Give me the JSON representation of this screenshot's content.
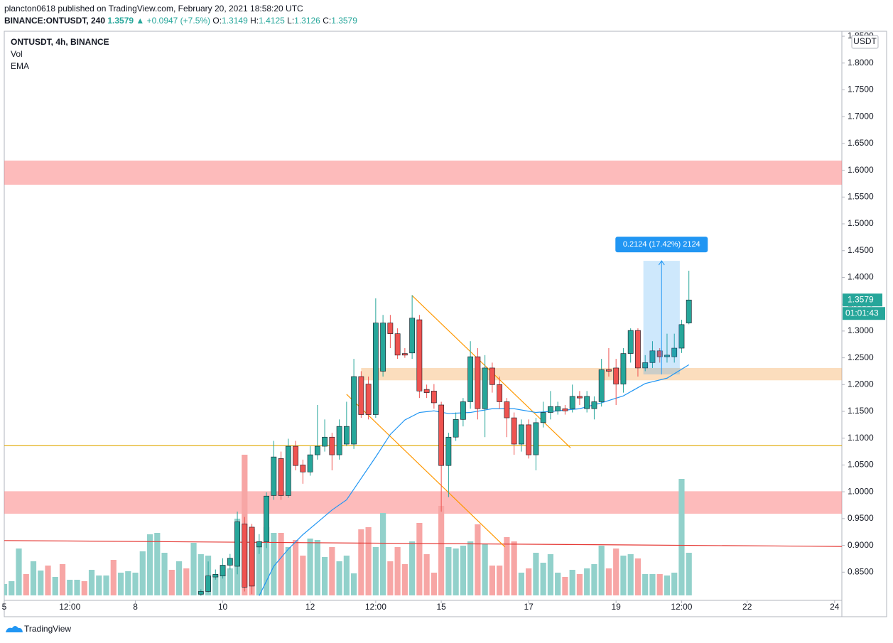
{
  "header": {
    "publisher": "plancton0618 published on TradingView.com, February 20, 2021 18:58:20 UTC",
    "symbol": "BINANCE:ONTUSDT, 240",
    "change": "▲ +0.0947 (+7.5%)",
    "o": "O:",
    "h": "H:",
    "l": "L:",
    "c": "C:"
  },
  "footer": {
    "brand": "TradingView"
  },
  "chart_data": {
    "type": "candlestick",
    "title": "ONTUSDT, 4h, BINANCE",
    "indicators": [
      "Vol",
      "EMA"
    ],
    "currency": "USDT",
    "countdown": "01:01:43",
    "up_color": "#26a69a",
    "down_color": "#ef5350",
    "x": [
      108,
      112,
      116,
      120,
      124,
      128,
      132,
      136,
      140,
      144,
      148,
      152,
      156,
      160,
      164,
      168,
      172,
      176,
      180,
      184,
      188,
      192,
      196,
      200,
      204,
      208,
      212,
      216,
      220,
      224,
      228,
      232,
      236,
      240,
      244,
      248,
      252,
      256,
      260,
      264,
      268,
      272,
      276,
      280,
      284,
      288,
      292,
      296,
      300,
      304,
      308,
      312,
      316,
      320,
      324,
      328,
      332,
      336,
      340,
      344,
      348,
      352,
      356,
      360,
      364,
      368,
      372,
      376
    ],
    "open": [
      0.809,
      0.814,
      0.841,
      0.843,
      0.863,
      0.861,
      0.94,
      0.934,
      0.897,
      0.907,
      0.993,
      1.062,
      0.993,
      1.085,
      1.05,
      1.037,
      1.069,
      1.085,
      1.102,
      1.069,
      1.089,
      1.089,
      1.215,
      1.201,
      1.144,
      1.225,
      1.315,
      1.295,
      1.258,
      1.259,
      1.321,
      1.191,
      1.188,
      1.162,
      1.049,
      1.102,
      1.135,
      1.168,
      1.252,
      1.155,
      1.231,
      1.2,
      1.168,
      1.138,
      1.089,
      1.125,
      1.069,
      1.129,
      1.148,
      1.151,
      1.155,
      1.155,
      1.178,
      1.155,
      1.155,
      1.168,
      1.228,
      1.231,
      1.201,
      1.258,
      1.301,
      1.231,
      1.241,
      1.263,
      1.252,
      1.252,
      1.268,
      1.3149
    ],
    "high": [
      0.818,
      0.87,
      0.855,
      0.876,
      0.884,
      0.963,
      0.953,
      0.94,
      0.921,
      0.999,
      1.095,
      1.075,
      1.099,
      1.095,
      1.06,
      1.085,
      1.162,
      1.135,
      1.11,
      1.135,
      1.168,
      1.248,
      1.225,
      1.215,
      1.361,
      1.33,
      1.33,
      1.305,
      1.268,
      1.367,
      1.33,
      1.2,
      1.201,
      1.168,
      1.11,
      1.148,
      1.175,
      1.281,
      1.268,
      1.255,
      1.241,
      1.215,
      1.175,
      1.148,
      1.135,
      1.135,
      1.138,
      1.168,
      1.188,
      1.168,
      1.162,
      1.2,
      1.188,
      1.188,
      1.178,
      1.248,
      1.268,
      1.248,
      1.268,
      1.305,
      1.305,
      1.255,
      1.281,
      1.268,
      1.295,
      1.295,
      1.321,
      1.4125
    ],
    "low": [
      0.806,
      0.812,
      0.836,
      0.838,
      0.855,
      0.846,
      0.814,
      0.809,
      0.884,
      0.895,
      0.985,
      0.985,
      0.989,
      1.04,
      1.015,
      1.03,
      1.06,
      1.075,
      1.04,
      1.06,
      1.085,
      1.08,
      1.138,
      1.135,
      1.138,
      1.215,
      1.268,
      1.248,
      1.25,
      1.248,
      1.175,
      1.175,
      1.155,
      0.963,
      0.99,
      1.095,
      1.122,
      1.155,
      1.135,
      1.102,
      1.185,
      1.155,
      1.102,
      1.069,
      1.075,
      1.062,
      1.04,
      1.12,
      1.135,
      1.144,
      1.144,
      1.148,
      1.162,
      1.148,
      1.135,
      1.159,
      1.215,
      1.162,
      1.185,
      1.241,
      1.215,
      1.225,
      1.231,
      1.241,
      1.241,
      1.241,
      1.259,
      1.3126
    ],
    "close": [
      0.814,
      0.843,
      0.846,
      0.863,
      0.876,
      0.944,
      0.822,
      0.824,
      0.907,
      0.992,
      1.065,
      0.993,
      1.085,
      1.049,
      1.037,
      1.069,
      1.085,
      1.102,
      1.069,
      1.122,
      1.122,
      1.215,
      1.144,
      1.144,
      1.315,
      1.315,
      1.295,
      1.255,
      1.255,
      1.324,
      1.188,
      1.185,
      1.166,
      1.049,
      1.102,
      1.135,
      1.168,
      1.252,
      1.155,
      1.231,
      1.2,
      1.168,
      1.138,
      1.089,
      1.125,
      1.069,
      1.129,
      1.148,
      1.159,
      1.159,
      1.151,
      1.178,
      1.175,
      1.178,
      1.168,
      1.228,
      1.225,
      1.201,
      1.258,
      1.301,
      1.231,
      1.241,
      1.263,
      1.252,
      1.255,
      1.268,
      1.312,
      1.3579
    ],
    "volume": {
      "name": "Vol",
      "x": [
        0,
        4,
        8,
        12,
        16,
        20,
        24,
        28,
        32,
        36,
        40,
        44,
        48,
        52,
        56,
        60,
        64,
        68,
        72,
        76,
        80,
        84,
        88,
        92,
        96,
        100,
        104,
        108,
        112,
        116,
        120,
        124,
        128,
        132,
        136,
        140,
        144,
        148,
        152,
        156,
        160,
        164,
        168,
        172,
        176,
        180,
        184,
        188,
        192,
        196,
        200,
        204,
        208,
        212,
        216,
        220,
        224,
        228,
        232,
        236,
        240,
        244,
        248,
        252,
        256,
        260,
        264,
        268,
        272,
        276,
        280,
        284,
        288,
        292,
        296,
        300,
        304,
        308,
        312,
        316,
        320,
        324,
        328,
        332,
        336,
        340,
        344,
        348,
        352,
        356,
        360,
        364,
        368,
        372,
        376
      ],
      "values": [
        16,
        20,
        66,
        30,
        48,
        35,
        42,
        26,
        44,
        22,
        22,
        20,
        36,
        28,
        28,
        50,
        32,
        34,
        32,
        62,
        86,
        88,
        60,
        36,
        48,
        38,
        74,
        58,
        56,
        28,
        28,
        38,
        108,
        198,
        93,
        68,
        96,
        88,
        88,
        68,
        78,
        56,
        80,
        78,
        54,
        68,
        48,
        56,
        31,
        93,
        96,
        68,
        116,
        48,
        68,
        44,
        76,
        102,
        58,
        32,
        126,
        68,
        66,
        70,
        76,
        100,
        72,
        42,
        42,
        82,
        76,
        32,
        38,
        60,
        46,
        58,
        32,
        26,
        36,
        30,
        38,
        44,
        70,
        38,
        66,
        56,
        58,
        52,
        30,
        30,
        30,
        28,
        32,
        164,
        60
      ],
      "colors": [
        "#92d1cb",
        "#92d1cb",
        "#92d1cb",
        "#f7a6a5",
        "#92d1cb",
        "#92d1cb",
        "#f7a6a5",
        "#92d1cb",
        "#f7a6a5",
        "#92d1cb",
        "#92d1cb",
        "#f7a6a5",
        "#92d1cb",
        "#92d1cb",
        "#92d1cb",
        "#f7a6a5",
        "#92d1cb",
        "#92d1cb",
        "#92d1cb",
        "#92d1cb",
        "#92d1cb",
        "#92d1cb",
        "#92d1cb",
        "#f7a6a5",
        "#92d1cb",
        "#f7a6a5",
        "#92d1cb",
        "#92d1cb",
        "#92d1cb",
        "#92d1cb",
        "#92d1cb",
        "#92d1cb",
        "#92d1cb",
        "#f7a6a5",
        "#f7a6a5",
        "#92d1cb",
        "#92d1cb",
        "#92d1cb",
        "#f7a6a5",
        "#92d1cb",
        "#f7a6a5",
        "#f7a6a5",
        "#92d1cb",
        "#92d1cb",
        "#92d1cb",
        "#f7a6a5",
        "#92d1cb",
        "#92d1cb",
        "#92d1cb",
        "#f7a6a5",
        "#f7a6a5",
        "#92d1cb",
        "#92d1cb",
        "#f7a6a5",
        "#f7a6a5",
        "#f7a6a5",
        "#92d1cb",
        "#f7a6a5",
        "#f7a6a5",
        "#f7a6a5",
        "#f7a6a5",
        "#92d1cb",
        "#92d1cb",
        "#92d1cb",
        "#92d1cb",
        "#f7a6a5",
        "#92d1cb",
        "#f7a6a5",
        "#f7a6a5",
        "#f7a6a5",
        "#f7a6a5",
        "#92d1cb",
        "#f7a6a5",
        "#92d1cb",
        "#92d1cb",
        "#92d1cb",
        "#92d1cb",
        "#f7a6a5",
        "#92d1cb",
        "#f7a6a5",
        "#92d1cb",
        "#92d1cb",
        "#92d1cb",
        "#f7a6a5",
        "#f7a6a5",
        "#92d1cb",
        "#92d1cb",
        "#f7a6a5",
        "#92d1cb",
        "#92d1cb",
        "#f7a6a5",
        "#92d1cb",
        "#92d1cb",
        "#92d1cb",
        "#92d1cb"
      ]
    },
    "ema": {
      "name": "EMA",
      "color": "#2196f3",
      "x": [
        140,
        148,
        156,
        164,
        172,
        180,
        188,
        196,
        204,
        212,
        220,
        228,
        236,
        244,
        256,
        268,
        280,
        292,
        304,
        316,
        328,
        340,
        352,
        364,
        376
      ],
      "values": [
        0.806,
        0.861,
        0.893,
        0.92,
        0.943,
        0.966,
        0.985,
        1.025,
        1.065,
        1.107,
        1.134,
        1.148,
        1.151,
        1.146,
        1.148,
        1.155,
        1.155,
        1.148,
        1.151,
        1.155,
        1.166,
        1.179,
        1.202,
        1.212,
        1.237
      ]
    },
    "zones": [
      {
        "x": [
          0,
          460
        ],
        "y": [
          1.573,
          1.618
        ],
        "color": "rgba(252,120,120,0.5)"
      },
      {
        "x": [
          0,
          460
        ],
        "y": [
          0.959,
          1.001
        ],
        "color": "rgba(252,120,120,0.5)"
      },
      {
        "x": [
          196,
          460
        ],
        "y": [
          1.208,
          1.231
        ],
        "color": "rgba(245,170,90,0.4)"
      }
    ],
    "lines": [
      {
        "x": [
          0,
          460
        ],
        "y": [
          1.086,
          1.086
        ],
        "color": "#e0a800"
      },
      {
        "x": [
          0,
          460
        ],
        "y": [
          0.909,
          0.898
        ],
        "color": "#e53935"
      },
      {
        "x": [
          224,
          311
        ],
        "y": [
          1.366,
          1.082
        ],
        "color": "#ff9800"
      },
      {
        "x": [
          188,
          275
        ],
        "y": [
          1.182,
          0.897
        ],
        "color": "#ff9800"
      }
    ],
    "measure": {
      "x": [
        351,
        371
      ],
      "y": [
        1.219,
        1.431
      ],
      "label": "0.2124 (17.42%) 2124",
      "color": "#2196f3"
    },
    "xlim": [
      0,
      460
    ],
    "xticks": [
      {
        "value": 0,
        "label": "5"
      },
      {
        "value": 36,
        "label": "12:00"
      },
      {
        "value": 72,
        "label": "8"
      },
      {
        "value": 120,
        "label": "10"
      },
      {
        "value": 168,
        "label": "12"
      },
      {
        "value": 204,
        "label": "12:00"
      },
      {
        "value": 240,
        "label": "15"
      },
      {
        "value": 288,
        "label": "17"
      },
      {
        "value": 336,
        "label": "19"
      },
      {
        "value": 372,
        "label": "12:00"
      },
      {
        "value": 408,
        "label": "22"
      },
      {
        "value": 456,
        "label": "24"
      }
    ],
    "ylim": [
      0.804,
      1.858
    ],
    "yticks": [
      {
        "value": 0.85,
        "label": "0.8500"
      },
      {
        "value": 0.9,
        "label": "0.9000"
      },
      {
        "value": 0.95,
        "label": "0.9500"
      },
      {
        "value": 1.0,
        "label": "1.0000"
      },
      {
        "value": 1.05,
        "label": "1.0500"
      },
      {
        "value": 1.1,
        "label": "1.1000"
      },
      {
        "value": 1.15,
        "label": "1.1500"
      },
      {
        "value": 1.2,
        "label": "1.2000"
      },
      {
        "value": 1.25,
        "label": "1.2500"
      },
      {
        "value": 1.3,
        "label": "1.3000"
      },
      {
        "value": 1.35,
        "label": "1.3500"
      },
      {
        "value": 1.4,
        "label": "1.4000"
      },
      {
        "value": 1.45,
        "label": "1.4500"
      },
      {
        "value": 1.5,
        "label": "1.5000"
      },
      {
        "value": 1.55,
        "label": "1.5500"
      },
      {
        "value": 1.6,
        "label": "1.6000"
      },
      {
        "value": 1.65,
        "label": "1.6500"
      },
      {
        "value": 1.7,
        "label": "1.7000"
      },
      {
        "value": 1.75,
        "label": "1.7500"
      },
      {
        "value": 1.8,
        "label": "1.8000"
      },
      {
        "value": 1.85,
        "label": "1.8500"
      }
    ],
    "grid": false
  }
}
